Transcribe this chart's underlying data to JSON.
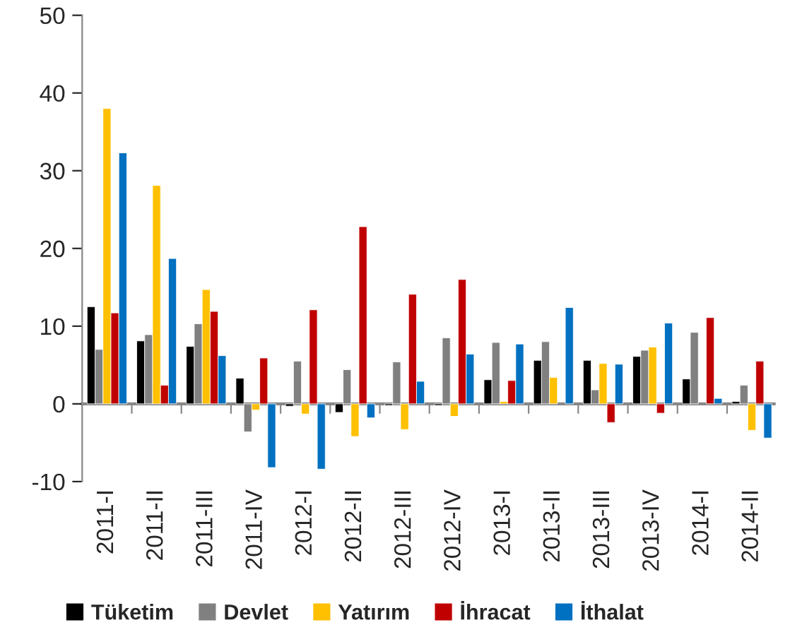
{
  "chart_data": {
    "type": "bar",
    "categories": [
      "2011-I",
      "2011-II",
      "2011-III",
      "2011-IV",
      "2012-I",
      "2012-II",
      "2012-III",
      "2012-IV",
      "2013-I",
      "2013-II",
      "2013-III",
      "2013-IV",
      "2014-I",
      "2014-II"
    ],
    "series": [
      {
        "name": "Tüketim",
        "color": "#000000",
        "values": [
          12.5,
          8.1,
          7.4,
          3.3,
          -0.3,
          -1.1,
          -0.2,
          -0.2,
          3.1,
          5.6,
          5.6,
          6.1,
          3.2,
          0.3
        ]
      },
      {
        "name": "Devlet",
        "color": "#808080",
        "values": [
          7.0,
          8.9,
          10.3,
          -3.6,
          5.5,
          4.4,
          5.4,
          8.5,
          7.9,
          8.0,
          1.8,
          6.9,
          9.2,
          2.4
        ]
      },
      {
        "name": "Yatırım",
        "color": "#ffc000",
        "values": [
          38.0,
          28.1,
          14.7,
          -0.8,
          -1.3,
          -4.2,
          -3.3,
          -1.6,
          0.3,
          3.4,
          5.2,
          7.3,
          null,
          -3.4
        ]
      },
      {
        "name": "İhracat",
        "color": "#c00000",
        "values": [
          11.7,
          2.4,
          11.9,
          5.9,
          12.1,
          22.8,
          14.1,
          16.0,
          3.0,
          null,
          -2.4,
          -1.2,
          11.1,
          5.5
        ]
      },
      {
        "name": "İthalat",
        "color": "#0070c0",
        "values": [
          32.3,
          18.7,
          6.2,
          -8.2,
          -8.4,
          -1.8,
          2.9,
          6.4,
          7.7,
          12.4,
          5.1,
          10.4,
          0.7,
          -4.4
        ]
      }
    ],
    "ylim": [
      -10,
      50
    ],
    "yticks": [
      -10,
      0,
      10,
      20,
      30,
      40,
      50
    ],
    "legend": "bottom"
  }
}
